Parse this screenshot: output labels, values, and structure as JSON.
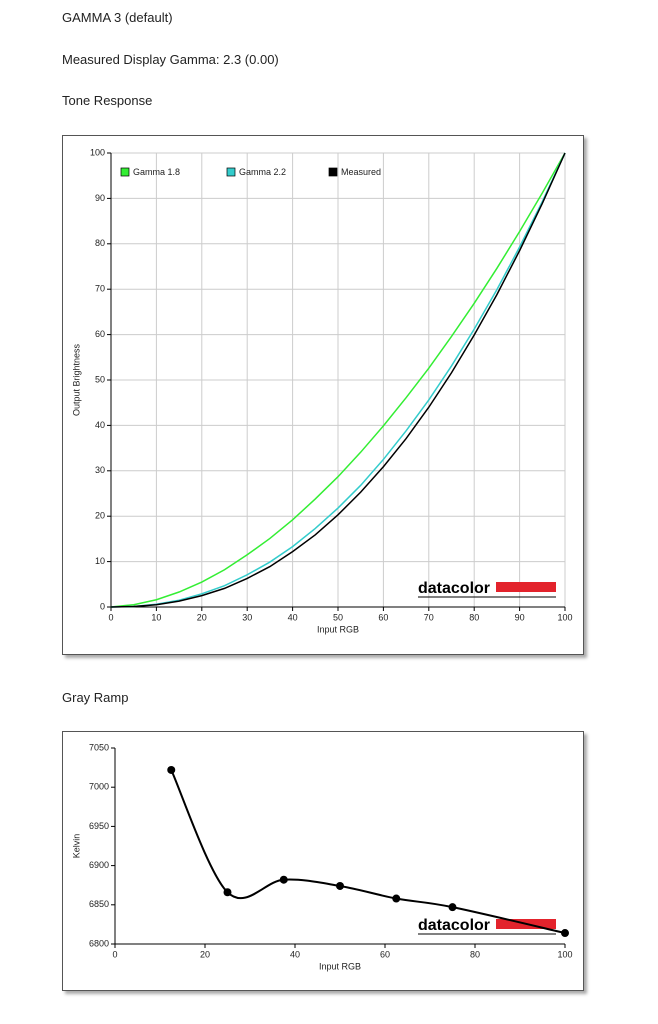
{
  "page": {
    "mode": "GAMMA 3 (default)",
    "measured": "Measured Display Gamma: 2.3 (0.00)",
    "tone_heading": "Tone Response",
    "gray_heading": "Gray Ramp"
  },
  "chart_data": [
    {
      "type": "line",
      "watermark": "datacolor",
      "x_label": "Input RGB",
      "y_label": "Output Brightness",
      "x": [
        0,
        5,
        10,
        15,
        20,
        25,
        30,
        35,
        40,
        45,
        50,
        55,
        60,
        65,
        70,
        75,
        80,
        85,
        90,
        95,
        100
      ],
      "series": [
        {
          "name": "Gamma 1.8",
          "color": "#33ee33",
          "values": [
            0,
            0.5,
            1.6,
            3.3,
            5.5,
            8.2,
            11.5,
            15.1,
            19.2,
            23.8,
            28.7,
            34.1,
            39.9,
            46.1,
            52.6,
            59.6,
            66.9,
            74.6,
            82.7,
            91.2,
            100
          ]
        },
        {
          "name": "Gamma 2.2",
          "color": "#33cccc",
          "values": [
            0,
            0.1,
            0.6,
            1.5,
            2.9,
            4.7,
            7.1,
            9.9,
            13.3,
            17.3,
            21.8,
            26.8,
            32.5,
            38.8,
            45.6,
            53.1,
            61.2,
            69.9,
            79.3,
            89.3,
            100
          ]
        },
        {
          "name": "Measured",
          "color": "#000000",
          "values": [
            0,
            0.1,
            0.5,
            1.3,
            2.5,
            4.1,
            6.3,
            8.9,
            12.2,
            15.9,
            20.3,
            25.3,
            30.9,
            37.1,
            44.0,
            51.6,
            59.9,
            68.8,
            78.5,
            88.9,
            100
          ]
        }
      ],
      "xlim": [
        0,
        100
      ],
      "xticks": [
        0,
        10,
        20,
        30,
        40,
        50,
        60,
        70,
        80,
        90,
        100
      ],
      "ylim": [
        0,
        100
      ],
      "yticks": [
        0,
        10,
        20,
        30,
        40,
        50,
        60,
        70,
        80,
        90,
        100
      ],
      "grid": true,
      "legend": "top",
      "smooth": false,
      "markers": false
    },
    {
      "type": "line",
      "watermark": "datacolor",
      "x_label": "Input RGB",
      "y_label": "Kelvin",
      "x": [
        12.5,
        25,
        37.5,
        50,
        62.5,
        75,
        100
      ],
      "values": [
        7022,
        6866,
        6882,
        6874,
        6858,
        6847,
        6814
      ],
      "color": "#000000",
      "xlim": [
        0,
        100
      ],
      "xticks": [
        0,
        20,
        40,
        60,
        80,
        100
      ],
      "ylim": [
        6800,
        7050
      ],
      "yticks": [
        6800,
        6850,
        6900,
        6950,
        7000,
        7050
      ],
      "grid": false,
      "smooth": true,
      "markers": true
    }
  ]
}
